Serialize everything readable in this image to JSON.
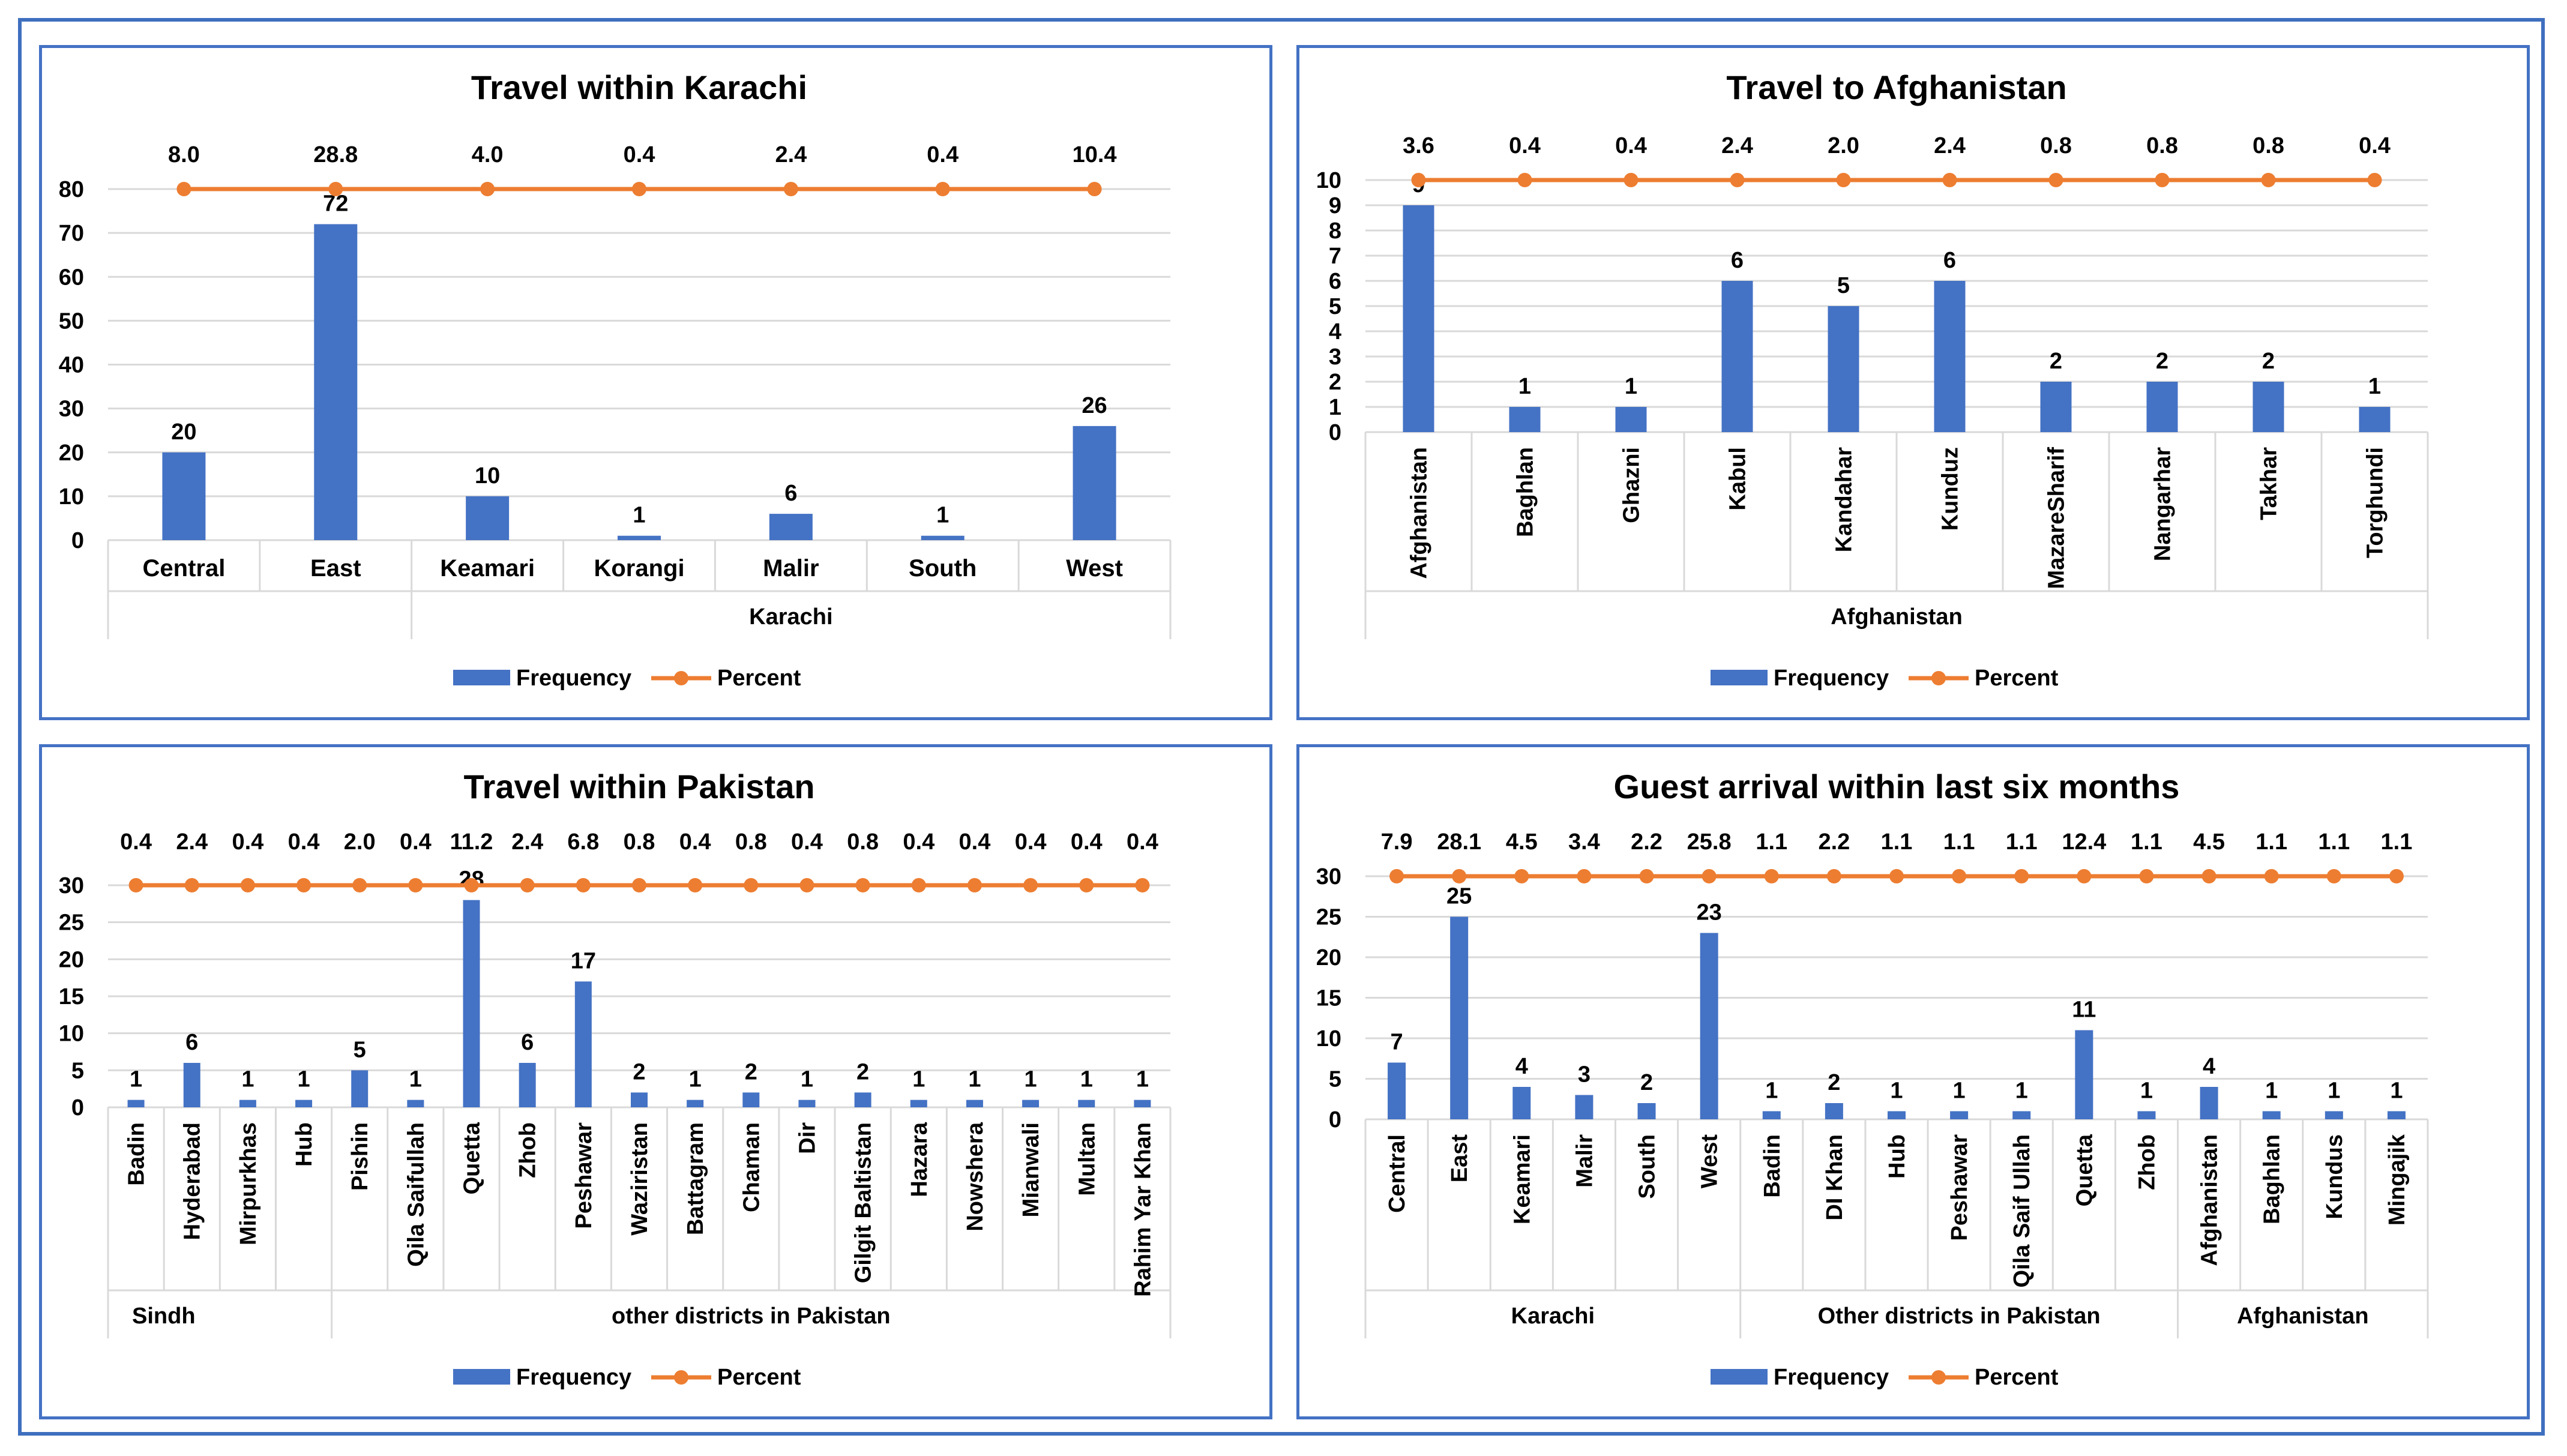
{
  "colors": {
    "frequency": "#4472c4",
    "percent": "#ed7d31",
    "grid": "#d9d9d9",
    "border": "#4472c4",
    "text": "#000000"
  },
  "legend": {
    "frequency": "Frequency",
    "percent": "Percent"
  },
  "chart_data": [
    {
      "type": "bar",
      "title": "Travel within Karachi",
      "categories": [
        "Central",
        "East",
        "Keamari",
        "Korangi",
        "Malir",
        "South",
        "West"
      ],
      "groups": [
        {
          "label": "",
          "start": 0,
          "end": 1
        },
        {
          "label": "Karachi",
          "start": 2,
          "end": 6
        }
      ],
      "series": [
        {
          "name": "Frequency",
          "type": "bar",
          "values": [
            20,
            72,
            10,
            1,
            6,
            1,
            26
          ]
        },
        {
          "name": "Percent",
          "type": "line",
          "values": [
            "8.0",
            "28.8",
            "4.0",
            "0.4",
            "2.4",
            "0.4",
            "10.4"
          ]
        }
      ],
      "ylim": [
        0,
        80
      ],
      "yticks": [
        0,
        10,
        20,
        30,
        40,
        50,
        60,
        70,
        80
      ],
      "percent_line_level": 80,
      "xlabel_rotation": 0,
      "legend_position": "bottom"
    },
    {
      "type": "bar",
      "title": "Travel to Afghanistan",
      "categories": [
        "Afghanistan",
        "Baghlan",
        "Ghazni",
        "Kabul",
        "Kandahar",
        "Kunduz",
        "MazareSharif",
        "Nangarhar",
        "Takhar",
        "Torghundi"
      ],
      "groups": [
        {
          "label": "Afghanistan",
          "start": 0,
          "end": 9
        }
      ],
      "series": [
        {
          "name": "Frequency",
          "type": "bar",
          "values": [
            9,
            1,
            1,
            6,
            5,
            6,
            2,
            2,
            2,
            1
          ]
        },
        {
          "name": "Percent",
          "type": "line",
          "values": [
            "3.6",
            "0.4",
            "0.4",
            "2.4",
            "2.0",
            "2.4",
            "0.8",
            "0.8",
            "0.8",
            "0.4"
          ]
        }
      ],
      "ylim": [
        0,
        10
      ],
      "yticks": [
        0,
        1,
        2,
        3,
        4,
        5,
        6,
        7,
        8,
        9,
        10
      ],
      "percent_line_level": 10,
      "xlabel_rotation": -90,
      "legend_position": "bottom"
    },
    {
      "type": "bar",
      "title": "Travel within Pakistan",
      "categories": [
        "Badin",
        "Hyderabad",
        "Mirpurkhas",
        "Hub",
        "Pishin",
        "Qila Saifullah",
        "Quetta",
        "Zhob",
        "Peshawar",
        "Waziristan",
        "Battagram",
        "Chaman",
        "Dir",
        "Gilgit Baltistan",
        "Hazara",
        "Nowshera",
        "Mianwali",
        "Multan",
        "Rahim Yar Khan"
      ],
      "groups": [
        {
          "label": "Sindh",
          "start": 0,
          "end": 3,
          "align": "left"
        },
        {
          "label": "other districts in Pakistan",
          "start": 4,
          "end": 18
        }
      ],
      "series": [
        {
          "name": "Frequency",
          "type": "bar",
          "values": [
            1,
            6,
            1,
            1,
            5,
            1,
            28,
            6,
            17,
            2,
            1,
            2,
            1,
            2,
            1,
            1,
            1,
            1,
            1
          ]
        },
        {
          "name": "Percent",
          "type": "line",
          "values": [
            "0.4",
            "2.4",
            "0.4",
            "0.4",
            "2.0",
            "0.4",
            "11.2",
            "2.4",
            "6.8",
            "0.8",
            "0.4",
            "0.8",
            "0.4",
            "0.8",
            "0.4",
            "0.4",
            "0.4",
            "0.4",
            "0.4"
          ]
        }
      ],
      "ylim": [
        0,
        30
      ],
      "yticks": [
        0,
        5,
        10,
        15,
        20,
        25,
        30
      ],
      "percent_line_level": 30,
      "xlabel_rotation": -90,
      "legend_position": "bottom"
    },
    {
      "type": "bar",
      "title": "Guest arrival within last six months",
      "categories": [
        "Central",
        "East",
        "Keamari",
        "Malir",
        "South",
        "West",
        "Badin",
        "DI Khan",
        "Hub",
        "Peshawar",
        "Qila Saif Ullah",
        "Quetta",
        "Zhob",
        "Afghanistan",
        "Baghlan",
        "Kundus",
        "Mingajik"
      ],
      "groups": [
        {
          "label": "Karachi",
          "start": 0,
          "end": 5
        },
        {
          "label": "Other districts in Pakistan",
          "start": 6,
          "end": 12
        },
        {
          "label": "Afghanistan",
          "start": 13,
          "end": 16
        }
      ],
      "series": [
        {
          "name": "Frequency",
          "type": "bar",
          "values": [
            7,
            25,
            4,
            3,
            2,
            23,
            1,
            2,
            1,
            1,
            1,
            11,
            1,
            4,
            1,
            1,
            1
          ]
        },
        {
          "name": "Percent",
          "type": "line",
          "values": [
            "7.9",
            "28.1",
            "4.5",
            "3.4",
            "2.2",
            "25.8",
            "1.1",
            "2.2",
            "1.1",
            "1.1",
            "1.1",
            "12.4",
            "1.1",
            "4.5",
            "1.1",
            "1.1",
            "1.1"
          ]
        }
      ],
      "ylim": [
        0,
        30
      ],
      "yticks": [
        0,
        5,
        10,
        15,
        20,
        25,
        30
      ],
      "percent_line_level": 30,
      "xlabel_rotation": -90,
      "legend_position": "bottom"
    }
  ]
}
